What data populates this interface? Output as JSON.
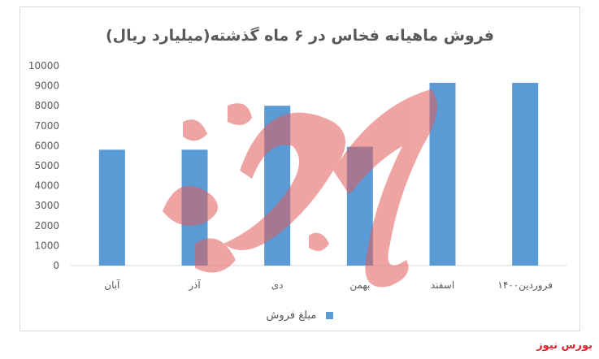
{
  "source_credit": "بورس نیوز",
  "watermark_text": "بورس نیوز",
  "chart_data": {
    "type": "bar",
    "title": "فروش ماهیانه فخاس در ۶ ماه گذشته(میلیارد ریال)",
    "categories": [
      "آبان",
      "آذر",
      "دی",
      "بهمن",
      "اسفند",
      "فروردین۱۴۰۰"
    ],
    "series": [
      {
        "name": "مبلغ فروش",
        "values": [
          5800,
          5800,
          8000,
          5950,
          9150,
          9150
        ],
        "color": "#5b9bd5"
      }
    ],
    "ylim": [
      0,
      10000
    ],
    "yticks": [
      "0",
      "1000",
      "2000",
      "3000",
      "4000",
      "5000",
      "6000",
      "7000",
      "8000",
      "9000",
      "10000"
    ],
    "grid": false,
    "legend_position": "bottom"
  }
}
